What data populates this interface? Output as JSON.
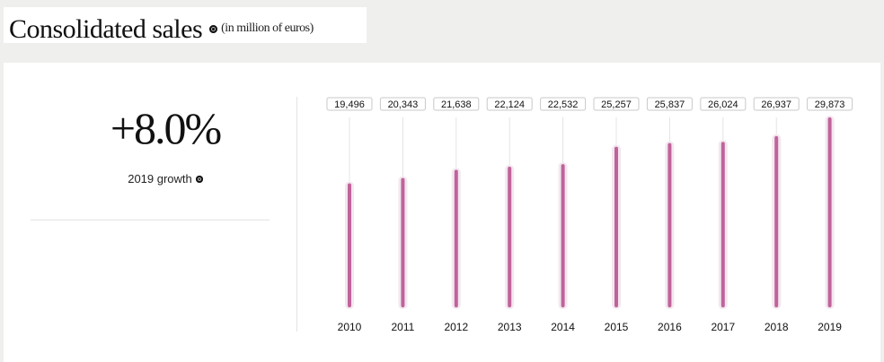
{
  "header": {
    "title": "Consolidated sales",
    "unit": "(in million of euros)"
  },
  "summary": {
    "growth_value": "+8.0%",
    "growth_label": "2019 growth"
  },
  "colors": {
    "bar": "#c0639b",
    "bar_halo": "#f3e7ef",
    "track": "#e4e4e4"
  },
  "chart_data": {
    "type": "bar",
    "categories": [
      "2010",
      "2011",
      "2012",
      "2013",
      "2014",
      "2015",
      "2016",
      "2017",
      "2018",
      "2019"
    ],
    "values": [
      19496,
      20343,
      21638,
      22124,
      22532,
      25257,
      25837,
      26024,
      26937,
      29873
    ],
    "value_labels": [
      "19,496",
      "20,343",
      "21,638",
      "22,124",
      "22,532",
      "25,257",
      "25,837",
      "26,024",
      "26,937",
      "29,873"
    ],
    "title": "Consolidated sales",
    "xlabel": "",
    "ylabel": "",
    "ylim": [
      0,
      29873
    ],
    "grid": false,
    "legend": "none"
  }
}
